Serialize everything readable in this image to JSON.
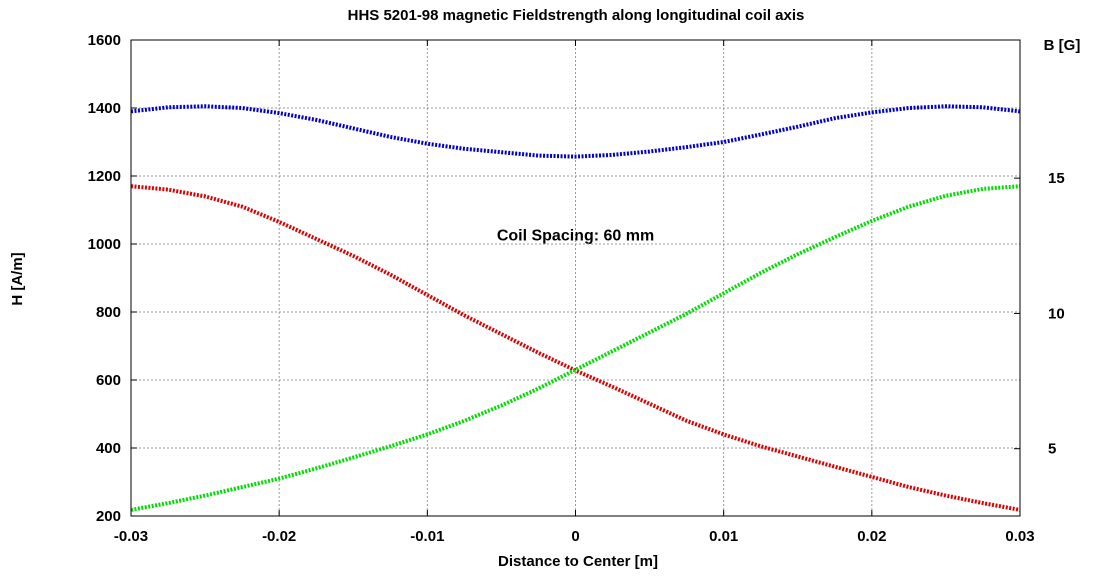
{
  "chart_data": {
    "type": "line",
    "title": "HHS 5201-98 magnetic Fieldstrength along longitudinal coil axis",
    "xlabel": "Distance to Center [m]",
    "ylabel": "H [A/m]",
    "y2label": "B [G]",
    "xlim": [
      -0.03,
      0.03
    ],
    "ylim": [
      200,
      1600
    ],
    "y2lim": [
      2.513,
      20.106
    ],
    "x_ticks": [
      "-0.03",
      "-0.02",
      "-0.01",
      "0",
      "0.01",
      "0.02",
      "0.03"
    ],
    "x_tick_values": [
      -0.03,
      -0.02,
      -0.01,
      0,
      0.01,
      0.02,
      0.03
    ],
    "y_ticks": [
      "200",
      "400",
      "600",
      "800",
      "1000",
      "1200",
      "1400",
      "1600"
    ],
    "y_tick_values": [
      200,
      400,
      600,
      800,
      1000,
      1200,
      1400,
      1600
    ],
    "y2_ticks": [
      "5",
      "10",
      "15"
    ],
    "y2_tick_values": [
      5,
      10,
      15
    ],
    "grid": true,
    "annotation": "Coil Spacing: 60 mm",
    "series": [
      {
        "color": "#0000cc",
        "x": [
          -0.03,
          -0.0275,
          -0.025,
          -0.0225,
          -0.02,
          -0.0175,
          -0.015,
          -0.0125,
          -0.01,
          -0.0075,
          -0.005,
          -0.0025,
          0,
          0.0025,
          0.005,
          0.0075,
          0.01,
          0.0125,
          0.015,
          0.0175,
          0.02,
          0.0225,
          0.025,
          0.0275,
          0.03
        ],
        "values": [
          1390,
          1402,
          1405,
          1400,
          1385,
          1365,
          1340,
          1315,
          1295,
          1280,
          1270,
          1260,
          1257,
          1262,
          1272,
          1285,
          1300,
          1322,
          1345,
          1370,
          1387,
          1400,
          1405,
          1402,
          1390
        ]
      },
      {
        "color": "#dd0000",
        "x": [
          -0.03,
          -0.0275,
          -0.025,
          -0.0225,
          -0.02,
          -0.0175,
          -0.015,
          -0.0125,
          -0.01,
          -0.0075,
          -0.005,
          -0.0025,
          0,
          0.0025,
          0.005,
          0.0075,
          0.01,
          0.0125,
          0.015,
          0.0175,
          0.02,
          0.0225,
          0.025,
          0.0275,
          0.03
        ],
        "values": [
          1170,
          1160,
          1140,
          1110,
          1065,
          1015,
          965,
          910,
          850,
          790,
          735,
          680,
          628,
          580,
          530,
          480,
          440,
          405,
          375,
          345,
          315,
          285,
          260,
          238,
          218
        ]
      },
      {
        "color": "#00dd00",
        "x": [
          -0.03,
          -0.0275,
          -0.025,
          -0.0225,
          -0.02,
          -0.0175,
          -0.015,
          -0.0125,
          -0.01,
          -0.0075,
          -0.005,
          -0.0025,
          0,
          0.0025,
          0.005,
          0.0075,
          0.01,
          0.0125,
          0.015,
          0.0175,
          0.02,
          0.0225,
          0.025,
          0.0275,
          0.03
        ],
        "values": [
          218,
          238,
          260,
          285,
          310,
          340,
          372,
          405,
          440,
          480,
          525,
          575,
          630,
          685,
          740,
          795,
          855,
          915,
          970,
          1020,
          1068,
          1110,
          1142,
          1162,
          1170
        ]
      }
    ]
  }
}
